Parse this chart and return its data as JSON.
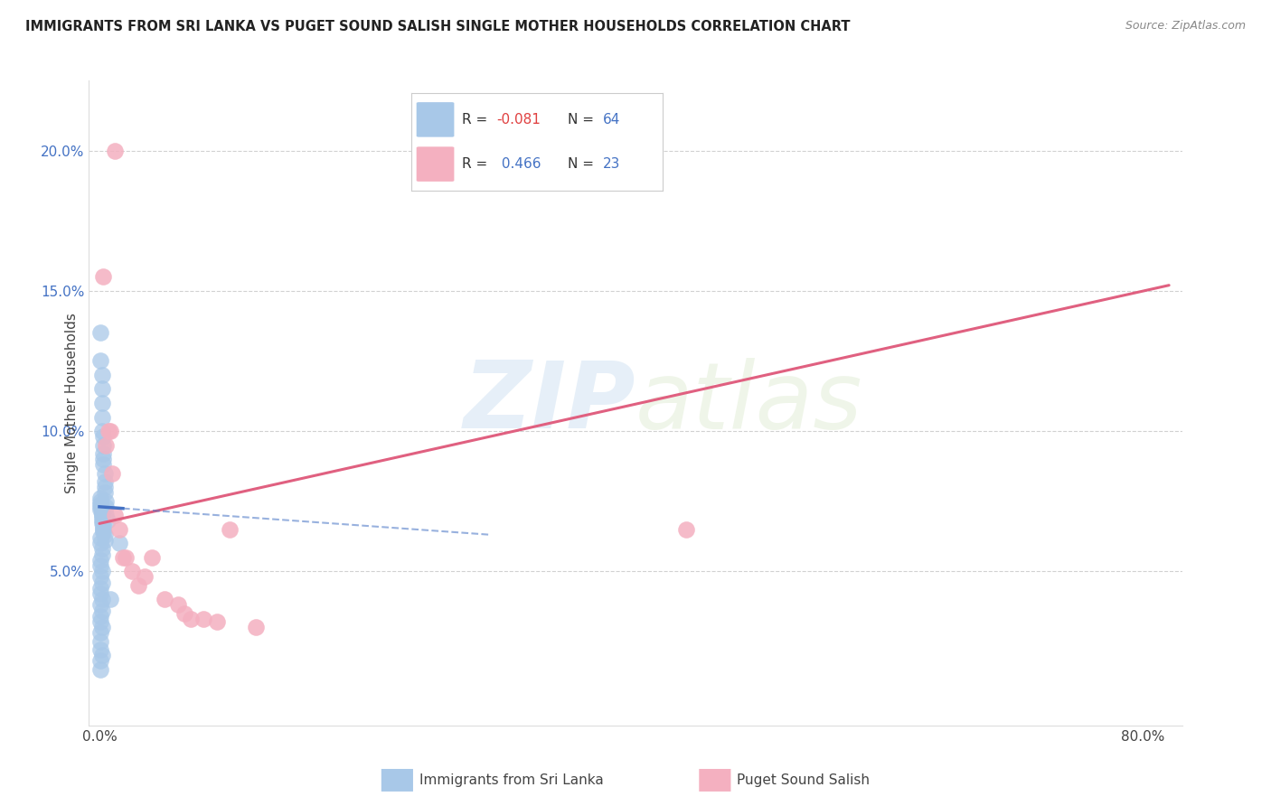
{
  "title": "IMMIGRANTS FROM SRI LANKA VS PUGET SOUND SALISH SINGLE MOTHER HOUSEHOLDS CORRELATION CHART",
  "source": "Source: ZipAtlas.com",
  "ylabel": "Single Mother Households",
  "ytick_right": [
    0.05,
    0.1,
    0.15,
    0.2
  ],
  "ytick_right_labels": [
    "5.0%",
    "10.0%",
    "15.0%",
    "20.0%"
  ],
  "xticks": [
    0.0,
    0.1,
    0.2,
    0.3,
    0.4,
    0.5,
    0.6,
    0.7,
    0.8
  ],
  "xtick_labels": [
    "0.0%",
    "",
    "",
    "",
    "",
    "",
    "",
    "",
    "80.0%"
  ],
  "xlim": [
    -0.008,
    0.83
  ],
  "ylim": [
    -0.005,
    0.225
  ],
  "blue_R": -0.081,
  "blue_N": 64,
  "pink_R": 0.466,
  "pink_N": 23,
  "blue_color": "#a8c8e8",
  "pink_color": "#f4b0c0",
  "blue_line_color": "#4472c4",
  "pink_line_color": "#e06080",
  "blue_line_solid_end": 0.018,
  "blue_line_dashed_end": 0.3,
  "pink_line_start": 0.0,
  "pink_line_end": 0.82,
  "legend_blue_label": "Immigrants from Sri Lanka",
  "legend_pink_label": "Puget Sound Salish",
  "blue_x": [
    0.001,
    0.001,
    0.002,
    0.002,
    0.002,
    0.002,
    0.002,
    0.003,
    0.003,
    0.003,
    0.003,
    0.003,
    0.004,
    0.004,
    0.004,
    0.004,
    0.005,
    0.005,
    0.005,
    0.006,
    0.001,
    0.001,
    0.002,
    0.002,
    0.002,
    0.003,
    0.003,
    0.004,
    0.004,
    0.001,
    0.001,
    0.002,
    0.002,
    0.003,
    0.003,
    0.001,
    0.002,
    0.002,
    0.003,
    0.001,
    0.001,
    0.002,
    0.002,
    0.001,
    0.001,
    0.002,
    0.001,
    0.002,
    0.001,
    0.001,
    0.002,
    0.001,
    0.002,
    0.001,
    0.001,
    0.002,
    0.001,
    0.001,
    0.001,
    0.002,
    0.001,
    0.001,
    0.015,
    0.008
  ],
  "blue_y": [
    0.135,
    0.125,
    0.12,
    0.115,
    0.11,
    0.105,
    0.1,
    0.098,
    0.095,
    0.092,
    0.09,
    0.088,
    0.085,
    0.082,
    0.08,
    0.078,
    0.075,
    0.073,
    0.07,
    0.068,
    0.076,
    0.074,
    0.072,
    0.07,
    0.068,
    0.066,
    0.065,
    0.063,
    0.061,
    0.075,
    0.073,
    0.071,
    0.069,
    0.067,
    0.064,
    0.072,
    0.07,
    0.067,
    0.065,
    0.062,
    0.06,
    0.058,
    0.056,
    0.054,
    0.052,
    0.05,
    0.048,
    0.046,
    0.044,
    0.042,
    0.04,
    0.038,
    0.036,
    0.034,
    0.032,
    0.03,
    0.028,
    0.025,
    0.022,
    0.02,
    0.018,
    0.015,
    0.06,
    0.04
  ],
  "pink_x": [
    0.003,
    0.005,
    0.008,
    0.01,
    0.012,
    0.015,
    0.018,
    0.02,
    0.025,
    0.03,
    0.035,
    0.04,
    0.05,
    0.06,
    0.065,
    0.07,
    0.08,
    0.09,
    0.1,
    0.12,
    0.45,
    0.007,
    0.012
  ],
  "pink_y": [
    0.155,
    0.095,
    0.1,
    0.085,
    0.07,
    0.065,
    0.055,
    0.055,
    0.05,
    0.045,
    0.048,
    0.055,
    0.04,
    0.038,
    0.035,
    0.033,
    0.033,
    0.032,
    0.065,
    0.03,
    0.065,
    0.1,
    0.2
  ],
  "pink_line_y0": 0.067,
  "pink_line_y1": 0.152,
  "blue_line_y0": 0.073,
  "blue_line_y1": 0.063
}
